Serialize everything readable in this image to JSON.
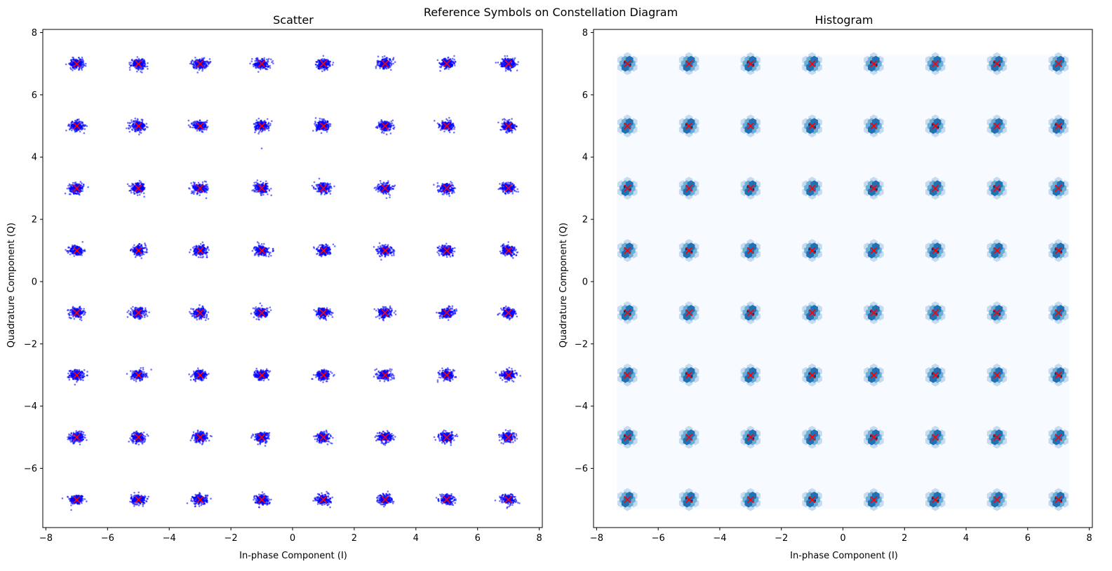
{
  "figure": {
    "suptitle": "Reference Symbols on Constellation Diagram"
  },
  "chart_data": [
    {
      "type": "scatter",
      "title": "Scatter",
      "xlabel": "In-phase Component (I)",
      "ylabel": "Quadrature Component (Q)",
      "xlim": [
        -8.1,
        8.1
      ],
      "ylim": [
        -7.9,
        8.1
      ],
      "xticks": [
        -8,
        -6,
        -4,
        -2,
        0,
        2,
        4,
        6,
        8
      ],
      "yticks": [
        -6,
        -4,
        -2,
        0,
        2,
        4,
        6,
        8
      ],
      "grid": false,
      "constellation_levels": [
        -7,
        -5,
        -3,
        -1,
        1,
        3,
        5,
        7
      ],
      "received_samples": {
        "description_of_distribution": "noisy clusters around each 64-QAM reference point",
        "noise_std": 0.1,
        "color": "#0000ff",
        "outliers": [
          [
            -1.0,
            4.28
          ],
          [
            -2.8,
            2.68
          ]
        ]
      },
      "reference_symbols": {
        "marker": "x",
        "color": "#ff0000"
      }
    },
    {
      "type": "heatmap",
      "subtype": "hexbin",
      "title": "Histogram",
      "xlabel": "In-phase Component (I)",
      "ylabel": "Quadrature Component (Q)",
      "xlim": [
        -8.1,
        8.1
      ],
      "ylim": [
        -7.9,
        8.1
      ],
      "xticks": [
        -8,
        -6,
        -4,
        -2,
        0,
        2,
        4,
        6,
        8
      ],
      "yticks": [
        -6,
        -4,
        -2,
        0,
        2,
        4,
        6,
        8
      ],
      "grid": false,
      "colormap": "Blues",
      "density_extent": [
        [
          -7.35,
          7.35
        ],
        [
          -7.3,
          7.3
        ]
      ],
      "constellation_levels": [
        -7,
        -5,
        -3,
        -1,
        1,
        3,
        5,
        7
      ],
      "reference_symbols": {
        "marker": "x",
        "color": "#ff0000"
      }
    }
  ],
  "colors": {
    "samples": "#0000ff",
    "reference": "#ff0000",
    "background_density": "#f7fbff",
    "density_low": "#c6dbef",
    "density_mid": "#6baed6",
    "density_high": "#2171b5",
    "density_peak": "#08306b"
  }
}
